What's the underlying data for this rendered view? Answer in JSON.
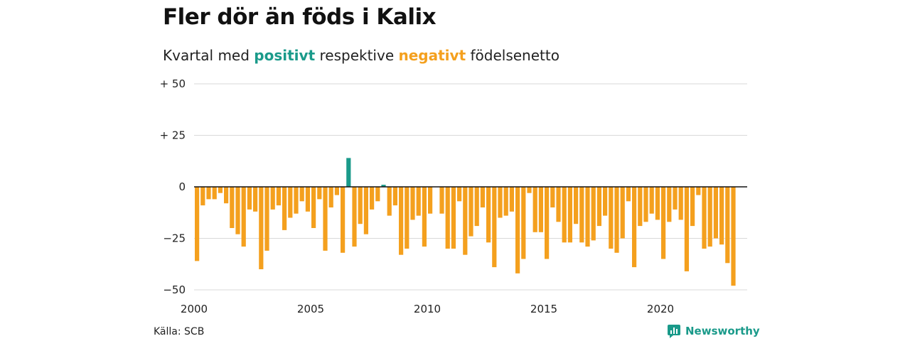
{
  "header": {
    "title": "Fler dör än föds i Kalix",
    "subtitle_prefix": "Kvartal med",
    "subtitle_positive": "positivt",
    "subtitle_middle": "respektive",
    "subtitle_negative": "negativt",
    "subtitle_suffix": "födelsenetto"
  },
  "footer": {
    "source": "Källa: SCB",
    "brand": "Newsworthy"
  },
  "colors": {
    "positive": "#1a9a8a",
    "negative": "#f4a01e",
    "grid": "#d9d9d9",
    "axis": "#111111"
  },
  "chart_data": {
    "type": "bar",
    "x_start": 2000,
    "x_end": 2023,
    "quarters_per_year": 4,
    "ylim": [
      -50,
      50
    ],
    "y_ticks": [
      50,
      25,
      0,
      -25,
      -50
    ],
    "y_tick_labels": [
      "+ 50",
      "+ 25",
      "0",
      "−25",
      "−50"
    ],
    "x_ticks": [
      2000,
      2005,
      2010,
      2015,
      2020
    ],
    "x_tick_labels": [
      "2000",
      "2005",
      "2010",
      "2015",
      "2020"
    ],
    "grid": true,
    "values": [
      -36,
      -9,
      -6,
      -6,
      -3,
      -8,
      -20,
      -23,
      -29,
      -11,
      -12,
      -40,
      -31,
      -11,
      -9,
      -21,
      -15,
      -13,
      -7,
      -12,
      -20,
      -6,
      -31,
      -10,
      -4,
      -32,
      14,
      -29,
      -18,
      -23,
      -11,
      -7,
      1,
      -14,
      -9,
      -33,
      -30,
      -16,
      -14,
      -29,
      -13,
      0,
      -13,
      -30,
      -30,
      -7,
      -33,
      -24,
      -19,
      -10,
      -27,
      -39,
      -15,
      -14,
      -12,
      -42,
      -35,
      -3,
      -22,
      -22,
      -35,
      -10,
      -17,
      -27,
      -27,
      -18,
      -27,
      -29,
      -26,
      -19,
      -14,
      -30,
      -32,
      -25,
      -7,
      -39,
      -19,
      -17,
      -13,
      -16,
      -35,
      -17,
      -11,
      -16,
      -41,
      -19,
      -4,
      -30,
      -29,
      -25,
      -28,
      -37,
      -48
    ]
  }
}
